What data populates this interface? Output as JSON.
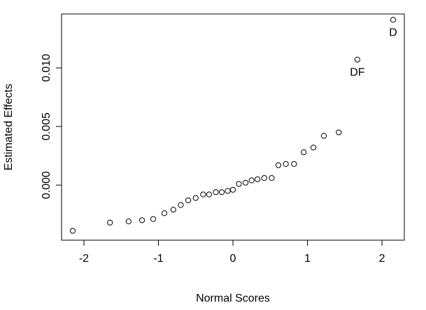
{
  "chart_data": {
    "type": "scatter",
    "title": "",
    "xlabel": "Normal Scores",
    "ylabel": "Estimated Effects",
    "xlim": [
      -2.3,
      2.3
    ],
    "ylim": [
      -0.0047,
      0.0146
    ],
    "xticks": [
      -2,
      -1,
      0,
      1,
      2
    ],
    "xtick_labels": [
      "-2",
      "-1",
      "0",
      "1",
      "2"
    ],
    "yticks": [
      0.0,
      0.005,
      0.01
    ],
    "ytick_labels": [
      "0.000",
      "0.005",
      "0.010"
    ],
    "grid": false,
    "legend": "none",
    "marker": "open-circle",
    "points": [
      {
        "x": -2.15,
        "y": -0.0039
      },
      {
        "x": -1.65,
        "y": -0.0032
      },
      {
        "x": -1.4,
        "y": -0.0031
      },
      {
        "x": -1.22,
        "y": -0.003
      },
      {
        "x": -1.07,
        "y": -0.0029
      },
      {
        "x": -0.92,
        "y": -0.0024
      },
      {
        "x": -0.8,
        "y": -0.0021
      },
      {
        "x": -0.7,
        "y": -0.0017
      },
      {
        "x": -0.6,
        "y": -0.0013
      },
      {
        "x": -0.5,
        "y": -0.0011
      },
      {
        "x": -0.4,
        "y": -0.0008
      },
      {
        "x": -0.32,
        "y": -0.0008
      },
      {
        "x": -0.23,
        "y": -0.0006
      },
      {
        "x": -0.15,
        "y": -0.0006
      },
      {
        "x": -0.07,
        "y": -0.0005
      },
      {
        "x": 0.0,
        "y": -0.0004
      },
      {
        "x": 0.08,
        "y": 0.0001
      },
      {
        "x": 0.17,
        "y": 0.0002
      },
      {
        "x": 0.25,
        "y": 0.0004
      },
      {
        "x": 0.33,
        "y": 0.0005
      },
      {
        "x": 0.42,
        "y": 0.0006
      },
      {
        "x": 0.52,
        "y": 0.0006
      },
      {
        "x": 0.61,
        "y": 0.0017
      },
      {
        "x": 0.71,
        "y": 0.0018
      },
      {
        "x": 0.82,
        "y": 0.0018
      },
      {
        "x": 0.95,
        "y": 0.0028
      },
      {
        "x": 1.08,
        "y": 0.0032
      },
      {
        "x": 1.22,
        "y": 0.0042
      },
      {
        "x": 1.42,
        "y": 0.0045
      },
      {
        "x": 1.67,
        "y": 0.0107,
        "label": "DF"
      },
      {
        "x": 2.15,
        "y": 0.0141,
        "label": "D"
      }
    ]
  }
}
